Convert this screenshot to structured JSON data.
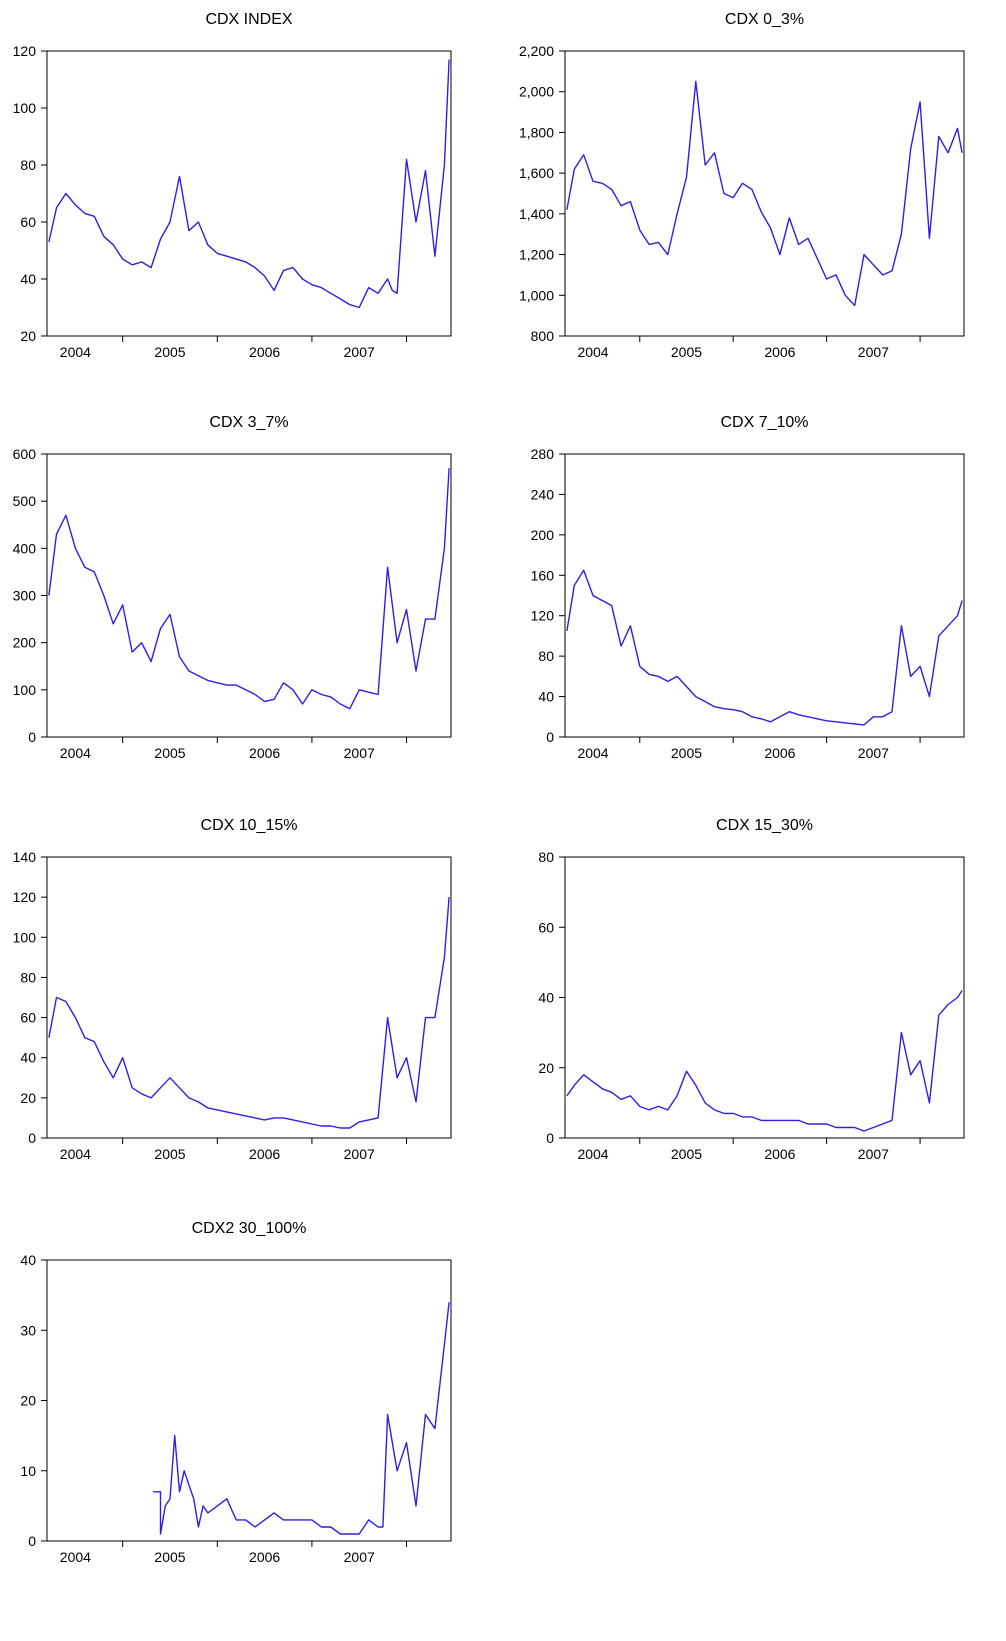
{
  "chart_data": [
    {
      "type": "line",
      "title": "CDX  INDEX",
      "x_tick_labels": [
        "2004",
        "2005",
        "2006",
        "2007"
      ],
      "ylim": [
        20,
        120
      ],
      "y_ticks": [
        20,
        40,
        60,
        80,
        100,
        120
      ],
      "y_tick_labels": [
        "20",
        "40",
        "60",
        "80",
        "100",
        "120"
      ],
      "grid": false,
      "x": [
        2003.72,
        2003.8,
        2003.9,
        2004.0,
        2004.1,
        2004.2,
        2004.3,
        2004.4,
        2004.5,
        2004.6,
        2004.7,
        2004.8,
        2004.9,
        2005.0,
        2005.1,
        2005.2,
        2005.3,
        2005.35,
        2005.4,
        2005.5,
        2005.6,
        2005.7,
        2005.8,
        2005.9,
        2006.0,
        2006.1,
        2006.2,
        2006.3,
        2006.4,
        2006.5,
        2006.6,
        2006.7,
        2006.8,
        2006.9,
        2007.0,
        2007.1,
        2007.2,
        2007.3,
        2007.35,
        2007.4,
        2007.5,
        2007.6,
        2007.7,
        2007.8,
        2007.9,
        2007.95
      ],
      "y": [
        53,
        65,
        70,
        66,
        63,
        62,
        55,
        52,
        47,
        45,
        46,
        44,
        54,
        60,
        76,
        57,
        60,
        56,
        52,
        49,
        48,
        47,
        46,
        44,
        41,
        36,
        43,
        44,
        40,
        38,
        37,
        35,
        33,
        31,
        30,
        37,
        35,
        40,
        36,
        35,
        82,
        60,
        78,
        48,
        80,
        117
      ]
    },
    {
      "type": "line",
      "title": "CDX  0_3%",
      "x_tick_labels": [
        "2004",
        "2005",
        "2006",
        "2007"
      ],
      "ylim": [
        800,
        2200
      ],
      "y_ticks": [
        800,
        1000,
        1200,
        1400,
        1600,
        1800,
        2000,
        2200
      ],
      "y_tick_labels": [
        "800",
        "1,000",
        "1,200",
        "1,400",
        "1,600",
        "1,800",
        "2,000",
        "2,200"
      ],
      "grid": false,
      "x": [
        2003.72,
        2003.8,
        2003.9,
        2004.0,
        2004.1,
        2004.2,
        2004.3,
        2004.4,
        2004.5,
        2004.6,
        2004.7,
        2004.8,
        2004.9,
        2005.0,
        2005.1,
        2005.2,
        2005.3,
        2005.4,
        2005.5,
        2005.6,
        2005.7,
        2005.8,
        2005.9,
        2006.0,
        2006.1,
        2006.2,
        2006.3,
        2006.4,
        2006.5,
        2006.6,
        2006.7,
        2006.8,
        2006.9,
        2007.0,
        2007.1,
        2007.2,
        2007.3,
        2007.4,
        2007.5,
        2007.6,
        2007.7,
        2007.8,
        2007.9,
        2007.95
      ],
      "y": [
        1420,
        1620,
        1690,
        1560,
        1550,
        1520,
        1440,
        1460,
        1320,
        1250,
        1260,
        1200,
        1400,
        1580,
        2050,
        1640,
        1700,
        1500,
        1480,
        1550,
        1520,
        1410,
        1330,
        1200,
        1380,
        1250,
        1280,
        1180,
        1080,
        1100,
        1000,
        950,
        1200,
        1150,
        1100,
        1120,
        1300,
        1720,
        1950,
        1280,
        1780,
        1700,
        1820,
        1700
      ]
    },
    {
      "type": "line",
      "title": "CDX  3_7%",
      "x_tick_labels": [
        "2004",
        "2005",
        "2006",
        "2007"
      ],
      "ylim": [
        0,
        600
      ],
      "y_ticks": [
        0,
        100,
        200,
        300,
        400,
        500,
        600
      ],
      "y_tick_labels": [
        "0",
        "100",
        "200",
        "300",
        "400",
        "500",
        "600"
      ],
      "grid": false,
      "x": [
        2003.72,
        2003.8,
        2003.9,
        2004.0,
        2004.1,
        2004.2,
        2004.3,
        2004.4,
        2004.5,
        2004.6,
        2004.7,
        2004.8,
        2004.9,
        2005.0,
        2005.1,
        2005.2,
        2005.3,
        2005.4,
        2005.5,
        2005.6,
        2005.7,
        2005.8,
        2005.9,
        2006.0,
        2006.1,
        2006.2,
        2006.3,
        2006.4,
        2006.5,
        2006.6,
        2006.7,
        2006.8,
        2006.9,
        2007.0,
        2007.1,
        2007.2,
        2007.3,
        2007.4,
        2007.5,
        2007.6,
        2007.7,
        2007.8,
        2007.9,
        2007.95
      ],
      "y": [
        300,
        430,
        470,
        400,
        360,
        350,
        300,
        240,
        280,
        180,
        200,
        160,
        230,
        260,
        170,
        140,
        130,
        120,
        115,
        110,
        110,
        100,
        90,
        75,
        80,
        115,
        100,
        70,
        100,
        90,
        85,
        70,
        60,
        100,
        95,
        90,
        360,
        200,
        270,
        140,
        250,
        250,
        400,
        570
      ]
    },
    {
      "type": "line",
      "title": "CDX  7_10%",
      "x_tick_labels": [
        "2004",
        "2005",
        "2006",
        "2007"
      ],
      "ylim": [
        0,
        280
      ],
      "y_ticks": [
        0,
        40,
        80,
        120,
        160,
        200,
        240,
        280
      ],
      "y_tick_labels": [
        "0",
        "40",
        "80",
        "120",
        "160",
        "200",
        "240",
        "280"
      ],
      "grid": false,
      "x": [
        2003.72,
        2003.8,
        2003.9,
        2004.0,
        2004.1,
        2004.2,
        2004.3,
        2004.4,
        2004.5,
        2004.6,
        2004.7,
        2004.8,
        2004.9,
        2005.0,
        2005.1,
        2005.2,
        2005.3,
        2005.4,
        2005.5,
        2005.6,
        2005.7,
        2005.8,
        2005.9,
        2006.0,
        2006.1,
        2006.2,
        2006.3,
        2006.4,
        2006.5,
        2006.6,
        2006.7,
        2006.8,
        2006.9,
        2007.0,
        2007.1,
        2007.2,
        2007.3,
        2007.4,
        2007.5,
        2007.6,
        2007.7,
        2007.8,
        2007.9,
        2007.95
      ],
      "y": [
        105,
        150,
        165,
        140,
        135,
        130,
        90,
        110,
        70,
        62,
        60,
        55,
        60,
        50,
        40,
        35,
        30,
        28,
        27,
        25,
        20,
        18,
        15,
        20,
        25,
        22,
        20,
        18,
        16,
        15,
        14,
        13,
        12,
        20,
        20,
        25,
        110,
        60,
        70,
        40,
        100,
        110,
        120,
        135
      ]
    },
    {
      "type": "line",
      "title": "CDX  10_15%",
      "x_tick_labels": [
        "2004",
        "2005",
        "2006",
        "2007"
      ],
      "ylim": [
        0,
        140
      ],
      "y_ticks": [
        0,
        20,
        40,
        60,
        80,
        100,
        120,
        140
      ],
      "y_tick_labels": [
        "0",
        "20",
        "40",
        "60",
        "80",
        "100",
        "120",
        "140"
      ],
      "grid": false,
      "x": [
        2003.72,
        2003.8,
        2003.9,
        2004.0,
        2004.1,
        2004.2,
        2004.3,
        2004.4,
        2004.5,
        2004.6,
        2004.7,
        2004.8,
        2004.9,
        2005.0,
        2005.1,
        2005.2,
        2005.3,
        2005.4,
        2005.5,
        2005.6,
        2005.7,
        2005.8,
        2005.9,
        2006.0,
        2006.1,
        2006.2,
        2006.3,
        2006.4,
        2006.5,
        2006.6,
        2006.7,
        2006.8,
        2006.9,
        2007.0,
        2007.1,
        2007.2,
        2007.3,
        2007.4,
        2007.5,
        2007.6,
        2007.7,
        2007.8,
        2007.9,
        2007.95
      ],
      "y": [
        50,
        70,
        68,
        60,
        50,
        48,
        38,
        30,
        40,
        25,
        22,
        20,
        25,
        30,
        25,
        20,
        18,
        15,
        14,
        13,
        12,
        11,
        10,
        9,
        10,
        10,
        9,
        8,
        7,
        6,
        6,
        5,
        5,
        8,
        9,
        10,
        60,
        30,
        40,
        18,
        60,
        60,
        90,
        120
      ]
    },
    {
      "type": "line",
      "title": "CDX  15_30%",
      "x_tick_labels": [
        "2004",
        "2005",
        "2006",
        "2007"
      ],
      "ylim": [
        0,
        80
      ],
      "y_ticks": [
        0,
        20,
        40,
        60,
        80
      ],
      "y_tick_labels": [
        "0",
        "20",
        "40",
        "60",
        "80"
      ],
      "grid": false,
      "x": [
        2003.72,
        2003.8,
        2003.9,
        2004.0,
        2004.1,
        2004.2,
        2004.3,
        2004.4,
        2004.5,
        2004.6,
        2004.7,
        2004.8,
        2004.9,
        2005.0,
        2005.1,
        2005.2,
        2005.3,
        2005.4,
        2005.5,
        2005.6,
        2005.7,
        2005.8,
        2005.9,
        2006.0,
        2006.1,
        2006.2,
        2006.3,
        2006.4,
        2006.5,
        2006.6,
        2006.7,
        2006.8,
        2006.9,
        2007.0,
        2007.1,
        2007.2,
        2007.3,
        2007.4,
        2007.5,
        2007.6,
        2007.7,
        2007.8,
        2007.9,
        2007.95
      ],
      "y": [
        12,
        15,
        18,
        16,
        14,
        13,
        11,
        12,
        9,
        8,
        9,
        8,
        12,
        19,
        15,
        10,
        8,
        7,
        7,
        6,
        6,
        5,
        5,
        5,
        5,
        5,
        4,
        4,
        4,
        3,
        3,
        3,
        2,
        3,
        4,
        5,
        30,
        18,
        22,
        10,
        35,
        38,
        40,
        42
      ]
    },
    {
      "type": "line",
      "title": "CDX2  30_100%",
      "x_tick_labels": [
        "2004",
        "2005",
        "2006",
        "2007"
      ],
      "ylim": [
        0,
        40
      ],
      "y_ticks": [
        0,
        10,
        20,
        30,
        40
      ],
      "y_tick_labels": [
        "0",
        "10",
        "20",
        "30",
        "40"
      ],
      "grid": false,
      "x": [
        2004.82,
        2004.9,
        2004.9,
        2004.95,
        2005.0,
        2005.05,
        2005.1,
        2005.15,
        2005.2,
        2005.25,
        2005.3,
        2005.35,
        2005.4,
        2005.5,
        2005.6,
        2005.7,
        2005.8,
        2005.9,
        2006.0,
        2006.1,
        2006.2,
        2006.3,
        2006.4,
        2006.5,
        2006.6,
        2006.7,
        2006.8,
        2006.9,
        2007.0,
        2007.05,
        2007.1,
        2007.2,
        2007.25,
        2007.3,
        2007.4,
        2007.5,
        2007.6,
        2007.7,
        2007.8,
        2007.9,
        2007.95
      ],
      "y": [
        7,
        7,
        1,
        5,
        6,
        15,
        7,
        10,
        8,
        6,
        2,
        5,
        4,
        5,
        6,
        3,
        3,
        2,
        3,
        4,
        3,
        3,
        3,
        3,
        2,
        2,
        1,
        1,
        1,
        2,
        3,
        2,
        2,
        18,
        10,
        14,
        5,
        18,
        16,
        28,
        34
      ]
    }
  ]
}
